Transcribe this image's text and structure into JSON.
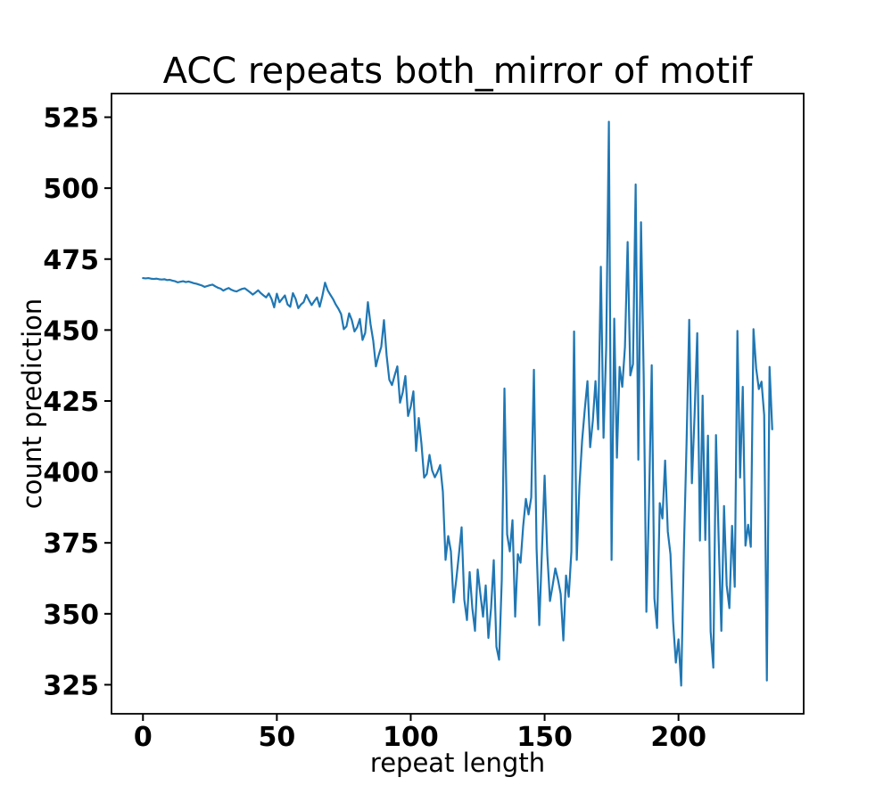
{
  "chart_data": {
    "type": "line",
    "title": "ACC repeats both_mirror of motif",
    "xlabel": "repeat length",
    "ylabel": "count prediction",
    "grid": false,
    "legend": null,
    "background": "#ffffff",
    "line_color": "#1f77b4",
    "spine_color": "#000000",
    "x_ticks": [
      0,
      50,
      100,
      150,
      200
    ],
    "y_ticks": [
      325,
      350,
      375,
      400,
      425,
      450,
      475,
      500,
      525
    ],
    "xlim": [
      -11.75,
      246.75
    ],
    "ylim": [
      314.77,
      533.33
    ],
    "x_start": 0,
    "x_step": 1,
    "values": [
      468.3,
      468.2,
      468.3,
      468.1,
      468.0,
      468.1,
      467.9,
      467.8,
      467.9,
      467.6,
      467.7,
      467.4,
      467.2,
      466.8,
      467.0,
      467.2,
      466.9,
      467.1,
      466.8,
      466.5,
      466.3,
      466.0,
      465.7,
      465.2,
      465.5,
      465.8,
      466.0,
      465.4,
      464.9,
      464.6,
      463.9,
      464.4,
      464.8,
      464.2,
      463.8,
      463.6,
      464.1,
      464.5,
      464.7,
      464.0,
      463.3,
      462.5,
      463.2,
      464.0,
      463.0,
      462.2,
      461.5,
      462.9,
      461.0,
      458.0,
      462.8,
      459.8,
      461.0,
      462.2,
      459.0,
      458.2,
      463.0,
      461.0,
      457.7,
      459.0,
      459.8,
      462.4,
      460.5,
      458.8,
      460.2,
      461.5,
      458.2,
      462.0,
      466.7,
      464.0,
      462.4,
      460.9,
      459.0,
      457.5,
      455.6,
      450.3,
      451.3,
      455.9,
      453.5,
      449.5,
      451.0,
      453.9,
      446.5,
      449.0,
      459.8,
      452.0,
      446.2,
      437.2,
      441.0,
      444.1,
      453.5,
      441.0,
      432.5,
      430.6,
      434.0,
      437.2,
      424.4,
      428.0,
      433.8,
      419.7,
      423.0,
      428.4,
      407.4,
      419.0,
      410.0,
      398.0,
      399.3,
      406.0,
      400.5,
      398.1,
      400.0,
      402.4,
      393.0,
      369.0,
      377.4,
      372.0,
      354.0,
      362.0,
      371.0,
      380.5,
      355.0,
      347.8,
      364.7,
      352.0,
      344.0,
      365.6,
      357.0,
      349.0,
      360.0,
      341.5,
      352.0,
      368.9,
      338.4,
      333.8,
      362.0,
      429.4,
      378.0,
      372.0,
      383.0,
      349.0,
      371.0,
      368.0,
      381.0,
      390.5,
      385.0,
      391.0,
      436.0,
      373.0,
      346.0,
      372.0,
      398.7,
      371.0,
      354.5,
      360.0,
      366.0,
      362.0,
      357.0,
      340.6,
      363.5,
      356.0,
      372.0,
      449.5,
      369.0,
      395.0,
      411.0,
      422.0,
      432.0,
      408.7,
      418.0,
      432.0,
      415.0,
      472.3,
      412.0,
      444.0,
      523.4,
      369.0,
      454.0,
      405.0,
      437.0,
      430.0,
      444.0,
      481.0,
      434.0,
      438.0,
      501.3,
      404.3,
      488.0,
      433.8,
      350.7,
      390.0,
      437.6,
      355.4,
      345.0,
      389.0,
      383.6,
      404.0,
      379.0,
      371.0,
      347.0,
      332.8,
      341.0,
      324.7,
      372.0,
      410.0,
      453.6,
      396.0,
      420.0,
      448.9,
      375.8,
      426.9,
      376.0,
      412.8,
      343.8,
      331.0,
      413.0,
      376.0,
      344.0,
      388.0,
      360.0,
      352.0,
      381.0,
      359.5,
      449.7,
      398.0,
      430.0,
      374.0,
      381.4,
      373.6,
      450.3,
      436.5,
      429.2,
      431.8,
      420.0,
      326.5,
      437.0,
      415.0
    ]
  }
}
